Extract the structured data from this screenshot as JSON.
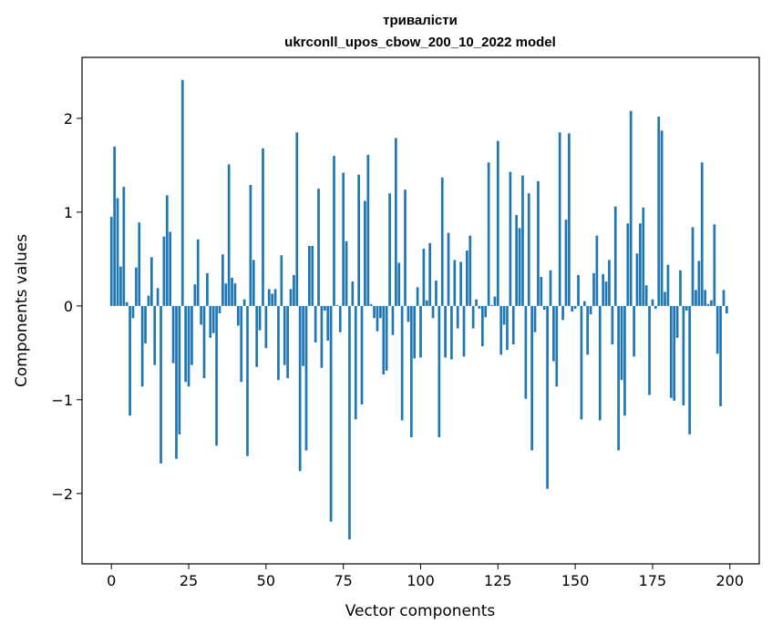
{
  "chart_data": {
    "type": "bar",
    "title_lines": [
      "тривалісти",
      "ukrconll_upos_cbow_200_10_2022 model"
    ],
    "xlabel": "Vector components",
    "ylabel": "Components values",
    "xlim": [
      -9.5,
      209.5
    ],
    "ylim": [
      -2.75,
      2.65
    ],
    "xticks": [
      0,
      25,
      50,
      75,
      100,
      125,
      150,
      175,
      200
    ],
    "yticks": [
      -2,
      -1,
      0,
      1,
      2
    ],
    "ytick_labels": [
      "−2",
      "−1",
      "0",
      "1",
      "2"
    ],
    "grid": false,
    "bar_color": "#1f77b4",
    "values": [
      0.95,
      1.7,
      1.15,
      0.42,
      1.27,
      0.04,
      -1.17,
      -0.13,
      0.41,
      0.89,
      -0.86,
      -0.4,
      0.11,
      0.52,
      -0.63,
      0.19,
      -1.68,
      0.74,
      1.18,
      0.79,
      -0.61,
      -1.63,
      -1.37,
      2.41,
      -0.81,
      -0.86,
      -0.63,
      0.23,
      0.71,
      -0.2,
      -0.77,
      0.35,
      -0.34,
      -0.29,
      -1.49,
      -0.08,
      0.55,
      0.24,
      1.51,
      0.3,
      0.24,
      -0.21,
      -0.81,
      0.07,
      -1.6,
      1.29,
      0.49,
      -0.65,
      -0.26,
      1.68,
      -0.45,
      0.18,
      0.13,
      0.18,
      -0.79,
      0.54,
      -0.63,
      -0.77,
      0.18,
      0.33,
      1.85,
      -1.76,
      -0.64,
      -1.54,
      0.64,
      0.64,
      -0.39,
      1.25,
      -0.66,
      -0.05,
      -0.37,
      -2.3,
      1.6,
      0.01,
      -0.28,
      1.42,
      0.69,
      -2.49,
      0.26,
      -1.21,
      1.4,
      -1.05,
      1.12,
      1.61,
      0.02,
      -0.13,
      -0.27,
      -0.13,
      -0.73,
      -0.69,
      1.2,
      -0.31,
      1.79,
      0.46,
      -1.22,
      1.24,
      -0.17,
      -1.4,
      -0.56,
      0.2,
      -0.55,
      0.61,
      0.06,
      0.67,
      -0.13,
      0.27,
      -1.4,
      1.37,
      -0.55,
      0.78,
      -0.57,
      0.49,
      -0.24,
      0.47,
      -0.54,
      0.59,
      0.75,
      -0.24,
      0.07,
      -0.03,
      -0.43,
      -0.12,
      1.53,
      0.01,
      0.1,
      1.76,
      -0.52,
      -0.2,
      -0.47,
      1.43,
      -0.41,
      0.97,
      0.83,
      1.39,
      -0.99,
      1.2,
      -1.54,
      -0.28,
      1.33,
      0.31,
      -0.04,
      -1.95,
      0.38,
      -0.59,
      -0.86,
      1.85,
      -0.15,
      0.92,
      1.84,
      -0.06,
      -0.03,
      0.33,
      -1.21,
      0.05,
      -0.52,
      -0.09,
      0.35,
      0.75,
      -1.22,
      0.34,
      0.26,
      0.49,
      -0.41,
      1.06,
      -1.54,
      -0.79,
      -1.17,
      0.88,
      2.08,
      -0.54,
      0.56,
      0.88,
      1.05,
      0.22,
      -0.95,
      0.07,
      -0.03,
      2.02,
      1.87,
      0.15,
      0.44,
      -0.98,
      -1.01,
      -0.34,
      0.38,
      -1.06,
      -0.05,
      -1.37,
      0.84,
      0.17,
      0.48,
      1.53,
      0.17,
      0.02,
      0.06,
      0.87,
      -0.51,
      -1.07,
      0.17,
      -0.08
    ]
  }
}
